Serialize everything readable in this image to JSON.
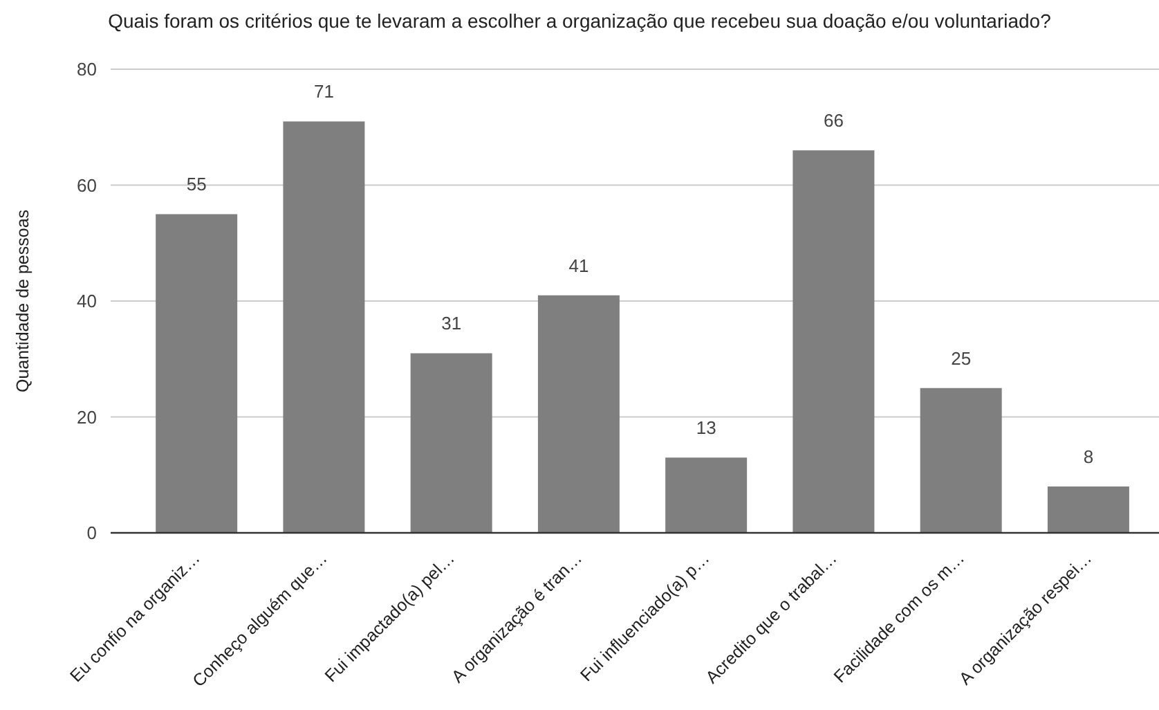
{
  "chart_data": {
    "type": "bar",
    "title": "Quais foram os critérios que te levaram a escolher a organização que recebeu sua doação e/ou voluntariado?",
    "ylabel": "Quantidade de pessoas",
    "categories": [
      "Eu confio na organiz…",
      "Conheço alguém que…",
      "Fui impactado(a) pel…",
      "A organização é tran…",
      "Fui influenciado(a) p…",
      "Acredito que o trabal…",
      "Facilidade com os m…",
      "A organização respei…"
    ],
    "values": [
      55,
      71,
      31,
      41,
      13,
      66,
      25,
      8
    ],
    "color": "#7f7f7f",
    "ylim": [
      0,
      80
    ],
    "yticks": [
      0,
      20,
      40,
      60,
      80
    ],
    "grid": "y",
    "data_labels": true
  }
}
